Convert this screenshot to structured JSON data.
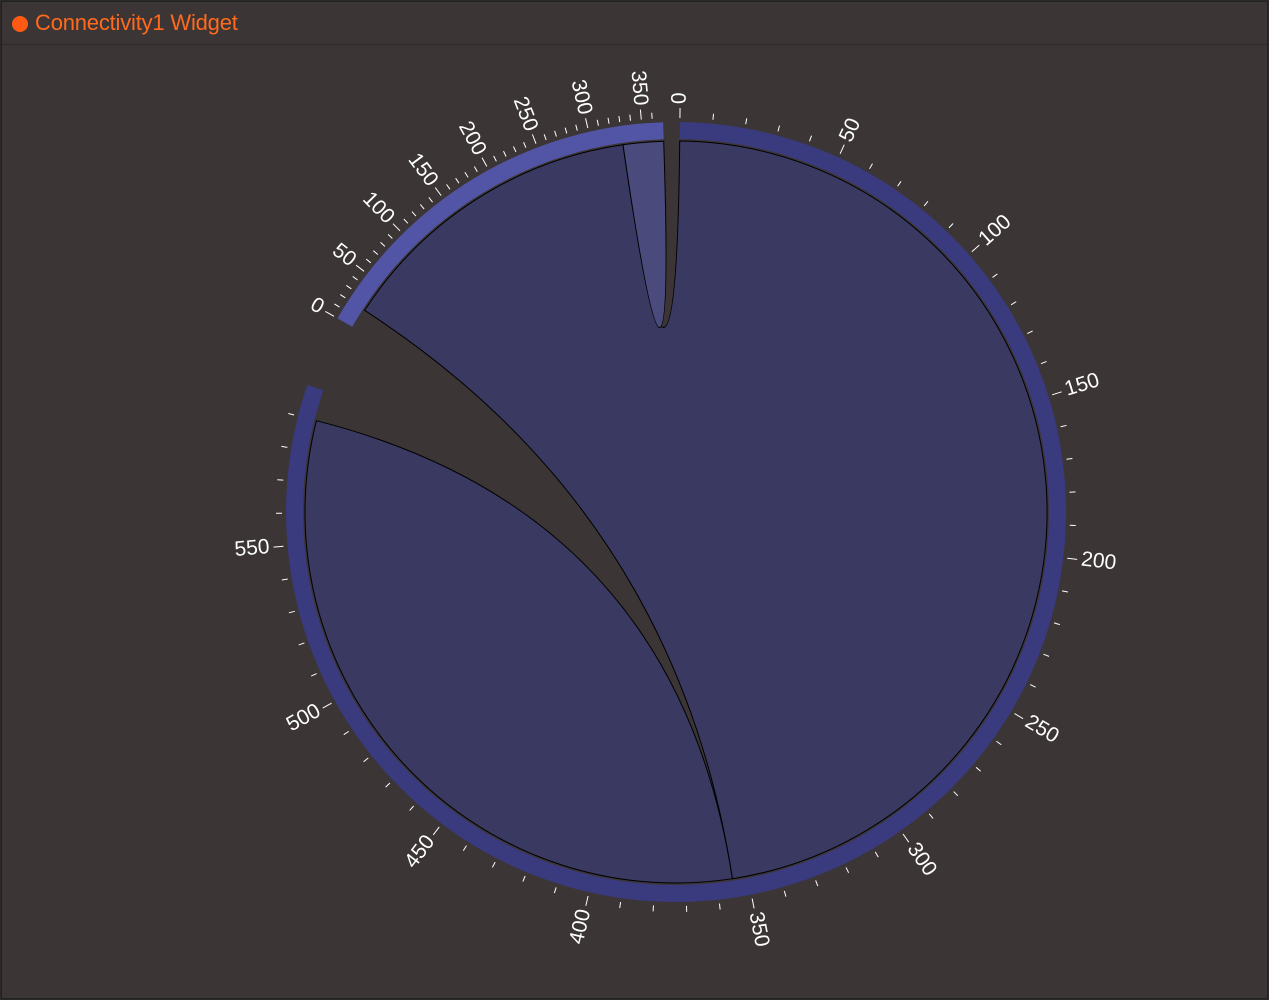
{
  "widget": {
    "title": "Connectivity1 Widget",
    "status_color": "#ff5a14",
    "title_color": "#ff6a1c"
  },
  "colors": {
    "background": "#3b3535",
    "label": "#ffffff"
  },
  "chart_data": {
    "type": "chord",
    "groups": [
      {
        "value": 600,
        "color": "#3a3a7e"
      },
      {
        "value": 370,
        "color": "#5255a6"
      }
    ],
    "ribbons": [
      {
        "source": {
          "group": 0,
          "start": 0,
          "end": 355
        },
        "target": {
          "group": 1,
          "start": 20,
          "end": 330
        },
        "color": "#393962"
      },
      {
        "source": {
          "group": 0,
          "start": 355,
          "end": 590
        },
        "target": {
          "group": 0,
          "start": 355,
          "end": 590
        },
        "color": "#393962"
      },
      {
        "source": {
          "group": 1,
          "start": 330,
          "end": 370
        },
        "target": {
          "group": 1,
          "start": 330,
          "end": 370
        },
        "color": "#4a4a7c"
      }
    ],
    "tick_labels": [
      [
        "0",
        "50",
        "100",
        "150",
        "200",
        "250",
        "300",
        "350",
        "400",
        "450",
        "500",
        "550"
      ],
      [
        "0",
        "50",
        "100",
        "150",
        "200",
        "250",
        "300",
        "350"
      ]
    ],
    "tick_step": 10,
    "label_step": 50
  }
}
